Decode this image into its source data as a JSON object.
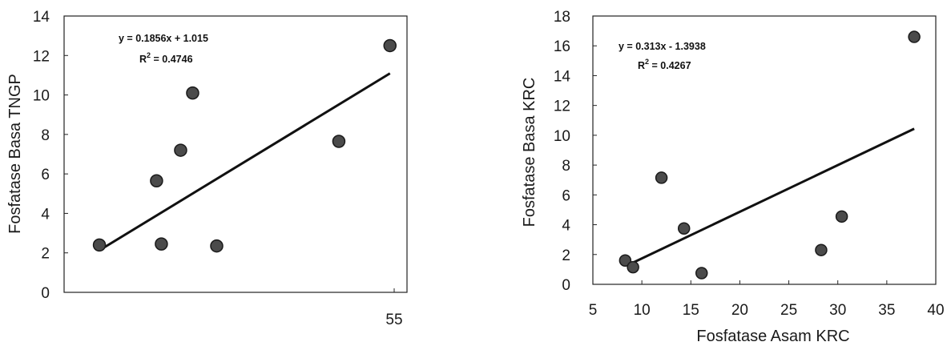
{
  "chart_data": [
    {
      "type": "scatter",
      "title": "",
      "xlabel": "",
      "ylabel": "Fosfatase Basa TNGP",
      "ylim": [
        0,
        14
      ],
      "xlim": [
        0,
        55
      ],
      "y_ticks": [
        "0",
        "2",
        "4",
        "6",
        "8",
        "10",
        "12",
        "14"
      ],
      "x_ticks": [
        {
          "value": 55,
          "label": "55"
        }
      ],
      "points": [
        {
          "x": 6,
          "y": 2.4
        },
        {
          "x": 15.5,
          "y": 5.65
        },
        {
          "x": 16.3,
          "y": 2.45
        },
        {
          "x": 19.5,
          "y": 7.2
        },
        {
          "x": 21.5,
          "y": 10.1
        },
        {
          "x": 25.5,
          "y": 2.35
        },
        {
          "x": 45.8,
          "y": 7.65
        },
        {
          "x": 54.3,
          "y": 12.5
        }
      ],
      "trendline": {
        "slope": 0.1856,
        "intercept": 1.015,
        "x_start": 6,
        "x_end": 54.3
      },
      "annotations": {
        "equation": "y = 0.1856x + 1.015",
        "r2_prefix": "R",
        "r2_sup": "2",
        "r2_value": " = 0.4746"
      },
      "grid": false,
      "legend": "none",
      "marker_color": "#4b4b4b"
    },
    {
      "type": "scatter",
      "title": "",
      "xlabel": "Fosfatase Asam KRC",
      "ylabel": "Fosfatase Basa KRC",
      "xlim": [
        5,
        40
      ],
      "ylim": [
        0,
        18
      ],
      "x_ticks": [
        {
          "value": 5,
          "label": "5"
        },
        {
          "value": 10,
          "label": "10"
        },
        {
          "value": 15,
          "label": "15"
        },
        {
          "value": 20,
          "label": "20"
        },
        {
          "value": 25,
          "label": "25"
        },
        {
          "value": 30,
          "label": "30"
        },
        {
          "value": 35,
          "label": "35"
        },
        {
          "value": 40,
          "label": "40"
        }
      ],
      "y_ticks": [
        "0",
        "2",
        "4",
        "6",
        "8",
        "10",
        "12",
        "14",
        "16",
        "18"
      ],
      "points": [
        {
          "x": 8.3,
          "y": 1.6
        },
        {
          "x": 9.1,
          "y": 1.15
        },
        {
          "x": 12.0,
          "y": 7.15
        },
        {
          "x": 14.3,
          "y": 3.75
        },
        {
          "x": 16.1,
          "y": 0.75
        },
        {
          "x": 28.3,
          "y": 2.3
        },
        {
          "x": 30.4,
          "y": 4.55
        },
        {
          "x": 37.8,
          "y": 16.6
        }
      ],
      "trendline": {
        "slope": 0.313,
        "intercept": -1.3938,
        "x_start": 9,
        "x_end": 37.8
      },
      "annotations": {
        "equation": "y = 0.313x - 1.3938",
        "r2_prefix": "R",
        "r2_sup": "2",
        "r2_value": " = 0.4267"
      },
      "grid": false,
      "legend": "none",
      "marker_color": "#4b4b4b"
    }
  ]
}
